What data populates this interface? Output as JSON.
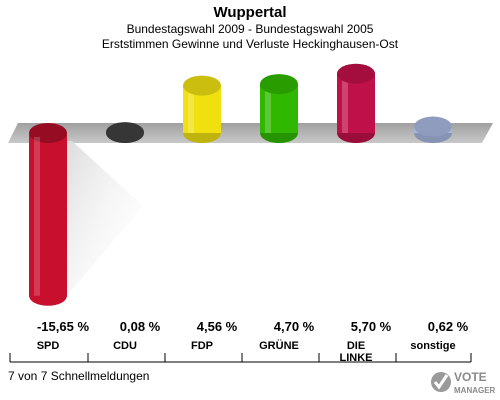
{
  "header": {
    "title": "Wuppertal",
    "subtitle_line1": "Bundestagswahl 2009 - Bundestagswahl 2005",
    "subtitle_line2": "Erststimmen Gewinne und Verluste Heckinghausen-Ost"
  },
  "chart_data": {
    "type": "bar",
    "categories": [
      "SPD",
      "CDU",
      "FDP",
      "GRÜNE",
      "DIE LINKE",
      "sonstige"
    ],
    "values": [
      -15.65,
      0.08,
      4.56,
      4.7,
      5.7,
      0.62
    ],
    "value_labels": [
      "-15,65 %",
      "0,08 %",
      "4,56 %",
      "4,70 %",
      "5,70 %",
      "0,62 %"
    ],
    "colors": [
      "#c8102e",
      "#404040",
      "#f0e010",
      "#30b800",
      "#c0104a",
      "#a8b8e0"
    ],
    "baseline": 0
  },
  "footer": {
    "status": "7 von 7 Schnellmeldungen"
  },
  "brand": {
    "line1": "VOTE",
    "line2": "MANAGER"
  }
}
